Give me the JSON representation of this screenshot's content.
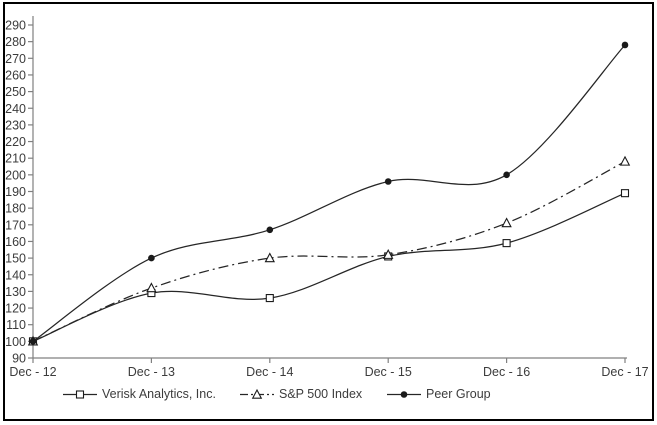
{
  "chart_data": {
    "type": "line",
    "title": "",
    "x_categories": [
      "Dec - 12",
      "Dec - 13",
      "Dec - 14",
      "Dec - 15",
      "Dec - 16",
      "Dec - 17"
    ],
    "series": [
      {
        "name": "Verisk Analytics, Inc.",
        "marker": "open-square",
        "line": "solid",
        "values": [
          100,
          129,
          126,
          151,
          159,
          189
        ]
      },
      {
        "name": "S&P 500 Index",
        "marker": "open-triangle",
        "line": "dash-dot",
        "values": [
          100,
          132,
          150,
          152,
          171,
          208
        ]
      },
      {
        "name": "Peer Group",
        "marker": "filled-circle",
        "line": "solid",
        "values": [
          100,
          150,
          167,
          196,
          200,
          278
        ]
      }
    ],
    "ylim": [
      90,
      290
    ],
    "ytick_step": 10,
    "ytick_labels": [
      90,
      100,
      110,
      120,
      130,
      140,
      150,
      160,
      170,
      180,
      190,
      200,
      210,
      220,
      230,
      240,
      250,
      260,
      270,
      280,
      290
    ],
    "xlabel": "",
    "ylabel": "",
    "grid": false,
    "smoothed_lines": true,
    "legend_position": "bottom",
    "colors": {
      "background": "#ffffff",
      "border": "#000000",
      "axis": "#808080",
      "text": "#3c3c3c",
      "series_line": "#262626",
      "marker_fill": "#ffffff",
      "marker_stroke": "#1a1a1a"
    }
  }
}
